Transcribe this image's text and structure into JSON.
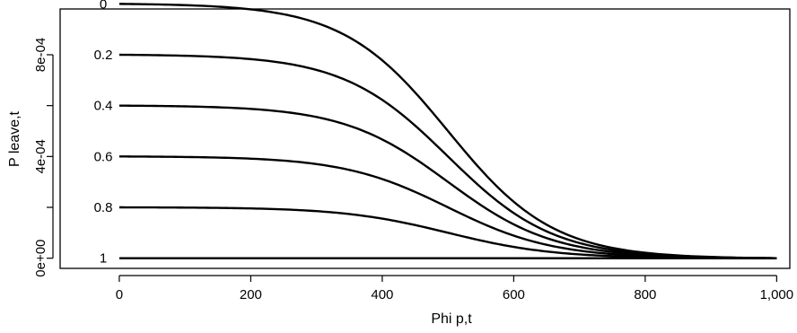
{
  "chart_data": {
    "type": "line",
    "xlabel": "Phi p,t",
    "ylabel": "P leave,t",
    "xlim": [
      -90,
      1020
    ],
    "ylim": [
      -4e-05,
      0.00098
    ],
    "x_ticks": [
      0,
      200,
      400,
      600,
      800,
      1000
    ],
    "x_tick_labels": [
      "0",
      "200",
      "400",
      "600",
      "800",
      "1,000"
    ],
    "y_ticks": [
      0,
      0.0002,
      0.0004,
      0.0006,
      0.0008
    ],
    "y_tick_labels": [
      "0e+00",
      "",
      "4e-04",
      "",
      "8e-04"
    ],
    "grid": false,
    "legend": "none",
    "line_color": "#000000",
    "curve_model": {
      "form": "logistic",
      "x0": 500,
      "width": 80
    },
    "series": [
      {
        "name": "0",
        "start": 0.001
      },
      {
        "name": "0.2",
        "start": 0.0008
      },
      {
        "name": "0.4",
        "start": 0.0006
      },
      {
        "name": "0.6",
        "start": 0.0004
      },
      {
        "name": "0.8",
        "start": 0.0002
      },
      {
        "name": "1",
        "start": 0.0
      }
    ],
    "x_range": [
      0,
      1000
    ]
  }
}
